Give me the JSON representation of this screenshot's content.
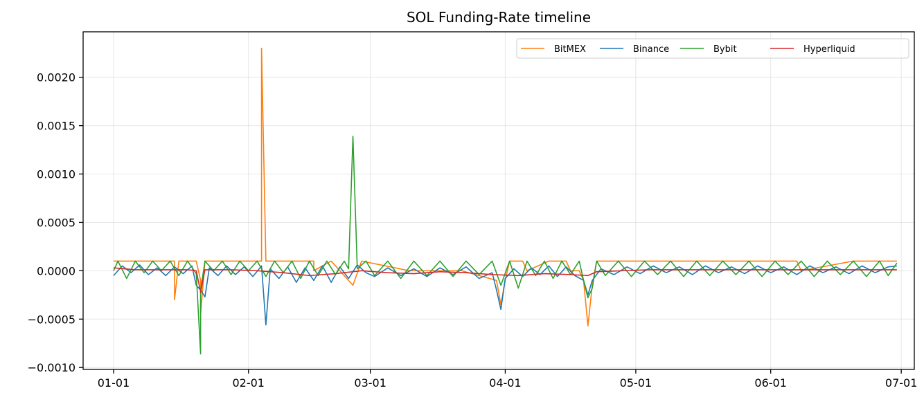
{
  "chart_data": {
    "type": "line",
    "title": "SOL Funding-Rate timeline",
    "xlabel": "",
    "ylabel": "",
    "x_tick_labels": [
      "01-01",
      "02-01",
      "03-01",
      "04-01",
      "05-01",
      "06-01",
      "07-01"
    ],
    "y_tick_labels": [
      "−0.0010",
      "−0.0005",
      "0.0000",
      "0.0005",
      "0.0010",
      "0.0015",
      "0.0020"
    ],
    "y_ticks": [
      -0.001,
      -0.0005,
      0.0,
      0.0005,
      0.001,
      0.0015,
      0.002
    ],
    "xlim": [
      "2024-12-25",
      "2025-07-04"
    ],
    "ylim": [
      -0.00102,
      0.00247
    ],
    "grid": true,
    "legend_position": "top-right",
    "legend_columns": 4,
    "series": [
      {
        "name": "BitMEX",
        "color": "#ff7f0e",
        "x": [
          "2025-01-01",
          "2025-01-15",
          "2025-01-15",
          "2025-01-16",
          "2025-01-20",
          "2025-01-21",
          "2025-01-21",
          "2025-01-22",
          "2025-02-04",
          "2025-02-04",
          "2025-02-05",
          "2025-02-13",
          "2025-02-16",
          "2025-02-16",
          "2025-02-20",
          "2025-02-25",
          "2025-02-27",
          "2025-03-10",
          "2025-03-22",
          "2025-03-30",
          "2025-03-31",
          "2025-04-01",
          "2025-04-02",
          "2025-04-05",
          "2025-04-06",
          "2025-04-11",
          "2025-04-15",
          "2025-04-16",
          "2025-04-18",
          "2025-04-19",
          "2025-04-20",
          "2025-04-21",
          "2025-04-22",
          "2025-04-23",
          "2025-04-25",
          "2025-05-10",
          "2025-06-07",
          "2025-06-08",
          "2025-06-20",
          "2025-06-21",
          "2025-06-30"
        ],
        "y": [
          0.0001,
          0.0001,
          -0.0003,
          0.0001,
          0.0001,
          -0.0001,
          -0.00045,
          0.0001,
          0.0001,
          0.0023,
          0.0001,
          0.0001,
          0.0001,
          0.0,
          0.0001,
          -0.00015,
          0.0001,
          0.0,
          0.0,
          -0.0001,
          -0.00035,
          -0.0001,
          0.0001,
          0.0001,
          0.0,
          0.0001,
          0.0001,
          0.0,
          0.0,
          -0.0001,
          -0.00057,
          -0.00015,
          0.0001,
          0.0001,
          0.0001,
          0.0001,
          0.0001,
          0.0,
          0.0001,
          0.0001,
          0.0001
        ]
      },
      {
        "name": "Binance",
        "color": "#1f77b4",
        "x": [
          "2025-01-01",
          "2025-01-03",
          "2025-01-05",
          "2025-01-07",
          "2025-01-09",
          "2025-01-11",
          "2025-01-13",
          "2025-01-15",
          "2025-01-17",
          "2025-01-19",
          "2025-01-20",
          "2025-01-21",
          "2025-01-22",
          "2025-01-23",
          "2025-01-25",
          "2025-01-27",
          "2025-01-29",
          "2025-01-31",
          "2025-02-02",
          "2025-02-04",
          "2025-02-05",
          "2025-02-06",
          "2025-02-08",
          "2025-02-10",
          "2025-02-12",
          "2025-02-14",
          "2025-02-16",
          "2025-02-18",
          "2025-02-20",
          "2025-02-22",
          "2025-02-24",
          "2025-02-26",
          "2025-02-28",
          "2025-03-02",
          "2025-03-05",
          "2025-03-08",
          "2025-03-11",
          "2025-03-14",
          "2025-03-17",
          "2025-03-20",
          "2025-03-23",
          "2025-03-26",
          "2025-03-29",
          "2025-03-30",
          "2025-03-31",
          "2025-04-01",
          "2025-04-03",
          "2025-04-05",
          "2025-04-07",
          "2025-04-09",
          "2025-04-11",
          "2025-04-13",
          "2025-04-15",
          "2025-04-17",
          "2025-04-19",
          "2025-04-20",
          "2025-04-21",
          "2025-04-23",
          "2025-04-26",
          "2025-04-29",
          "2025-05-02",
          "2025-05-05",
          "2025-05-08",
          "2025-05-11",
          "2025-05-14",
          "2025-05-17",
          "2025-05-20",
          "2025-05-23",
          "2025-05-26",
          "2025-05-29",
          "2025-06-01",
          "2025-06-04",
          "2025-06-07",
          "2025-06-10",
          "2025-06-13",
          "2025-06-16",
          "2025-06-19",
          "2025-06-22",
          "2025-06-25",
          "2025-06-28",
          "2025-06-30"
        ],
        "y": [
          -5e-05,
          5e-05,
          -2e-05,
          6e-05,
          -4e-05,
          3e-05,
          -5e-05,
          4e-05,
          -3e-05,
          5e-05,
          -0.00015,
          -0.0002,
          -0.00027,
          3e-05,
          -5e-05,
          5e-05,
          -4e-05,
          4e-05,
          -6e-05,
          5e-05,
          -0.00056,
          2e-05,
          -8e-05,
          4e-05,
          -0.00012,
          3e-05,
          -0.0001,
          5e-05,
          -0.00012,
          4e-05,
          -8e-05,
          6e-05,
          -2e-05,
          -6e-05,
          3e-05,
          -5e-05,
          2e-05,
          -6e-05,
          3e-05,
          -4e-05,
          4e-05,
          -8e-05,
          -2e-05,
          -0.0002,
          -0.0004,
          -8e-05,
          2e-05,
          -6e-05,
          3e-05,
          -4e-05,
          5e-05,
          -6e-05,
          4e-05,
          -5e-05,
          -0.0001,
          -0.00025,
          -0.0001,
          2e-05,
          -4e-05,
          4e-05,
          -3e-05,
          5e-05,
          -2e-05,
          4e-05,
          -4e-05,
          5e-05,
          -2e-05,
          4e-05,
          -3e-05,
          5e-05,
          -2e-05,
          4e-05,
          -4e-05,
          5e-05,
          -2e-05,
          4e-05,
          -3e-05,
          5e-05,
          -2e-05,
          4e-05,
          5e-05
        ]
      },
      {
        "name": "Bybit",
        "color": "#2ca02c",
        "x": [
          "2025-01-01",
          "2025-01-02",
          "2025-01-04",
          "2025-01-06",
          "2025-01-08",
          "2025-01-10",
          "2025-01-12",
          "2025-01-14",
          "2025-01-16",
          "2025-01-18",
          "2025-01-20",
          "2025-01-21",
          "2025-01-21",
          "2025-01-22",
          "2025-01-24",
          "2025-01-26",
          "2025-01-28",
          "2025-01-30",
          "2025-02-01",
          "2025-02-03",
          "2025-02-05",
          "2025-02-07",
          "2025-02-09",
          "2025-02-11",
          "2025-02-13",
          "2025-02-15",
          "2025-02-17",
          "2025-02-19",
          "2025-02-21",
          "2025-02-23",
          "2025-02-24",
          "2025-02-25",
          "2025-02-26",
          "2025-02-28",
          "2025-03-02",
          "2025-03-05",
          "2025-03-08",
          "2025-03-11",
          "2025-03-14",
          "2025-03-17",
          "2025-03-20",
          "2025-03-23",
          "2025-03-26",
          "2025-03-29",
          "2025-03-31",
          "2025-04-02",
          "2025-04-04",
          "2025-04-06",
          "2025-04-08",
          "2025-04-10",
          "2025-04-12",
          "2025-04-14",
          "2025-04-16",
          "2025-04-18",
          "2025-04-19",
          "2025-04-20",
          "2025-04-21",
          "2025-04-22",
          "2025-04-24",
          "2025-04-27",
          "2025-04-30",
          "2025-05-03",
          "2025-05-06",
          "2025-05-09",
          "2025-05-12",
          "2025-05-15",
          "2025-05-18",
          "2025-05-21",
          "2025-05-24",
          "2025-05-27",
          "2025-05-30",
          "2025-06-02",
          "2025-06-05",
          "2025-06-08",
          "2025-06-11",
          "2025-06-14",
          "2025-06-17",
          "2025-06-20",
          "2025-06-23",
          "2025-06-26",
          "2025-06-28",
          "2025-06-30"
        ],
        "y": [
          0.0,
          0.0001,
          -8e-05,
          0.0001,
          -2e-05,
          0.0001,
          0.0,
          0.0001,
          -5e-05,
          0.0001,
          -3e-05,
          -0.00086,
          -0.0002,
          0.0001,
          0.0,
          0.0001,
          -4e-05,
          0.0001,
          0.0,
          0.0001,
          -6e-05,
          0.0001,
          -2e-05,
          0.0001,
          -8e-05,
          0.0001,
          -5e-05,
          0.0001,
          -4e-05,
          0.0001,
          2e-05,
          0.00139,
          2e-05,
          0.0001,
          -5e-05,
          0.0001,
          -8e-05,
          0.0001,
          -5e-05,
          0.0001,
          -6e-05,
          0.0001,
          -4e-05,
          0.0001,
          -0.00015,
          0.0001,
          -0.00018,
          0.0001,
          -5e-05,
          0.0001,
          -8e-05,
          0.0001,
          -4e-05,
          0.0001,
          -0.0001,
          -0.00028,
          -0.00018,
          0.0001,
          -5e-05,
          0.0001,
          -6e-05,
          0.0001,
          -4e-05,
          0.0001,
          -6e-05,
          0.0001,
          -5e-05,
          0.0001,
          -4e-05,
          0.0001,
          -6e-05,
          0.0001,
          -4e-05,
          0.0001,
          -6e-05,
          0.0001,
          -4e-05,
          0.0001,
          -6e-05,
          0.0001,
          -5e-05,
          8e-05
        ]
      },
      {
        "name": "Hyperliquid",
        "color": "#d62728",
        "x": [
          "2025-01-01",
          "2025-01-06",
          "2025-01-12",
          "2025-01-18",
          "2025-01-20",
          "2025-01-21",
          "2025-01-22",
          "2025-01-28",
          "2025-02-03",
          "2025-02-09",
          "2025-02-15",
          "2025-02-21",
          "2025-02-27",
          "2025-03-05",
          "2025-03-11",
          "2025-03-17",
          "2025-03-23",
          "2025-03-29",
          "2025-04-04",
          "2025-04-10",
          "2025-04-16",
          "2025-04-20",
          "2025-04-22",
          "2025-04-28",
          "2025-05-04",
          "2025-05-10",
          "2025-05-16",
          "2025-05-22",
          "2025-05-28",
          "2025-06-03",
          "2025-06-09",
          "2025-06-15",
          "2025-06-21",
          "2025-06-30"
        ],
        "y": [
          3e-05,
          1e-05,
          1e-05,
          1e-05,
          0.0,
          -0.00022,
          1e-05,
          1e-05,
          0.0,
          -2e-05,
          -5e-05,
          -3e-05,
          0.0,
          -2e-05,
          -3e-05,
          -1e-05,
          -2e-05,
          -4e-05,
          -5e-05,
          -3e-05,
          -4e-05,
          -5e-05,
          -1e-05,
          0.0,
          1e-05,
          1e-05,
          1e-05,
          1e-05,
          1e-05,
          1e-05,
          1e-05,
          1e-05,
          1e-05,
          1e-05
        ]
      }
    ]
  }
}
